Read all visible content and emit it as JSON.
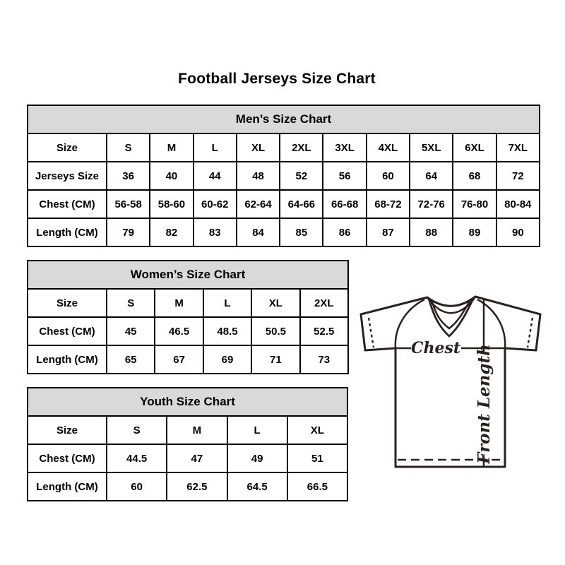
{
  "page": {
    "title": "Football Jerseys Size Chart"
  },
  "chart_data": [
    {
      "type": "table",
      "title": "Men’s Size Chart",
      "columns": [
        "Size",
        "S",
        "M",
        "L",
        "XL",
        "2XL",
        "3XL",
        "4XL",
        "5XL",
        "6XL",
        "7XL"
      ],
      "rows": [
        [
          "Jerseys Size",
          "36",
          "40",
          "44",
          "48",
          "52",
          "56",
          "60",
          "64",
          "68",
          "72"
        ],
        [
          "Chest (CM)",
          "56-58",
          "58-60",
          "60-62",
          "62-64",
          "64-66",
          "66-68",
          "68-72",
          "72-76",
          "76-80",
          "80-84"
        ],
        [
          "Length (CM)",
          "79",
          "82",
          "83",
          "84",
          "85",
          "86",
          "87",
          "88",
          "89",
          "90"
        ]
      ]
    },
    {
      "type": "table",
      "title": "Women’s Size Chart",
      "columns": [
        "Size",
        "S",
        "M",
        "L",
        "XL",
        "2XL"
      ],
      "rows": [
        [
          "Chest (CM)",
          "45",
          "46.5",
          "48.5",
          "50.5",
          "52.5"
        ],
        [
          "Length (CM)",
          "65",
          "67",
          "69",
          "71",
          "73"
        ]
      ]
    },
    {
      "type": "table",
      "title": "Youth Size Chart",
      "columns": [
        "Size",
        "S",
        "M",
        "L",
        "XL"
      ],
      "rows": [
        [
          "Chest (CM)",
          "44.5",
          "47",
          "49",
          "51"
        ],
        [
          "Length (CM)",
          "60",
          "62.5",
          "64.5",
          "66.5"
        ]
      ]
    }
  ],
  "diagram": {
    "chest_label": "Chest",
    "front_length_label": "Front Length"
  },
  "colors": {
    "background": "#ffffff",
    "text": "#000000",
    "table_border": "#000000",
    "table_header_bg": "#d9d9d9",
    "diagram_line": "#2a211f"
  }
}
